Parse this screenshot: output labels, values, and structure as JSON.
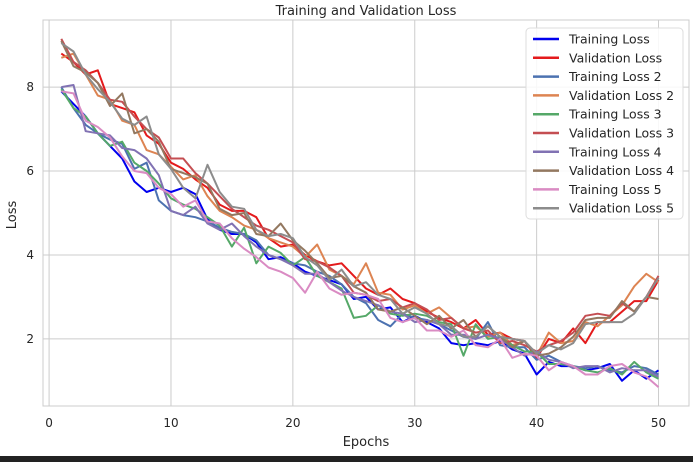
{
  "chart_data": {
    "type": "line",
    "title": "Training and Validation Loss",
    "xlabel": "Epochs",
    "ylabel": "Loss",
    "xlim": [
      -0.5,
      52.5
    ],
    "ylim": [
      0.4,
      9.6
    ],
    "xticks": [
      0,
      10,
      20,
      30,
      40,
      50
    ],
    "yticks": [
      2,
      4,
      6,
      8
    ],
    "grid": true,
    "legend_position": "top-right",
    "x": [
      1,
      2,
      3,
      4,
      5,
      6,
      7,
      8,
      9,
      10,
      11,
      12,
      13,
      14,
      15,
      16,
      17,
      18,
      19,
      20,
      21,
      22,
      23,
      24,
      25,
      26,
      27,
      28,
      29,
      30,
      31,
      32,
      33,
      34,
      35,
      36,
      37,
      38,
      39,
      40,
      41,
      42,
      43,
      44,
      45,
      46,
      47,
      48,
      49,
      50
    ],
    "series": [
      {
        "name": "Training Loss",
        "color": "#0000ee",
        "values": [
          7.9,
          7.6,
          7.3,
          6.9,
          6.6,
          6.3,
          5.75,
          5.5,
          5.6,
          5.5,
          5.6,
          5.45,
          4.85,
          4.6,
          4.5,
          4.5,
          4.3,
          3.9,
          3.95,
          3.8,
          3.6,
          3.5,
          3.4,
          3.3,
          2.95,
          3.0,
          2.7,
          2.75,
          2.4,
          2.55,
          2.4,
          2.25,
          1.9,
          1.85,
          1.9,
          1.85,
          1.95,
          1.75,
          1.65,
          1.15,
          1.45,
          1.35,
          1.35,
          1.25,
          1.3,
          1.4,
          1.0,
          1.25,
          1.05,
          1.25
        ]
      },
      {
        "name": "Validation Loss",
        "color": "#e41a1c",
        "values": [
          8.8,
          8.6,
          8.3,
          8.4,
          7.6,
          7.5,
          7.4,
          6.85,
          6.65,
          6.2,
          6.05,
          5.8,
          5.6,
          5.2,
          5.05,
          5.05,
          4.9,
          4.4,
          4.2,
          4.25,
          4.0,
          3.85,
          3.75,
          3.8,
          3.5,
          3.2,
          3.05,
          3.2,
          2.95,
          2.85,
          2.65,
          2.5,
          2.4,
          2.25,
          2.45,
          2.1,
          2.15,
          2.0,
          1.95,
          1.55,
          2.0,
          1.9,
          2.25,
          1.9,
          2.4,
          2.4,
          2.65,
          2.9,
          2.9,
          3.4
        ]
      },
      {
        "name": "Training Loss 2",
        "color": "#4c72b0",
        "values": [
          8.0,
          7.5,
          7.1,
          6.9,
          6.75,
          6.65,
          6.05,
          6.2,
          5.3,
          5.05,
          4.95,
          4.9,
          4.8,
          4.65,
          4.55,
          4.5,
          4.35,
          4.0,
          3.9,
          3.8,
          3.75,
          3.6,
          3.5,
          3.3,
          3.0,
          2.85,
          2.45,
          2.3,
          2.6,
          2.5,
          2.45,
          2.35,
          2.2,
          2.05,
          2.0,
          2.4,
          1.85,
          1.8,
          1.8,
          1.5,
          1.6,
          1.45,
          1.35,
          1.3,
          1.35,
          1.25,
          1.2,
          1.35,
          1.3,
          1.15
        ]
      },
      {
        "name": "Validation Loss 2",
        "color": "#dd8452",
        "values": [
          8.7,
          8.8,
          8.3,
          7.8,
          7.7,
          7.2,
          7.1,
          6.5,
          6.4,
          6.1,
          5.8,
          5.9,
          5.4,
          5.05,
          4.9,
          4.7,
          4.6,
          4.4,
          4.3,
          4.2,
          3.95,
          4.25,
          3.65,
          3.5,
          3.3,
          3.8,
          3.1,
          3.05,
          2.7,
          2.8,
          2.6,
          2.75,
          2.5,
          2.25,
          2.3,
          2.05,
          2.15,
          1.85,
          1.95,
          1.6,
          2.15,
          1.9,
          1.95,
          2.4,
          2.3,
          2.55,
          2.8,
          3.25,
          3.55,
          3.35
        ]
      },
      {
        "name": "Training Loss 3",
        "color": "#55a868",
        "values": [
          7.95,
          7.5,
          7.3,
          6.9,
          6.6,
          6.7,
          6.2,
          6.0,
          5.7,
          5.35,
          5.2,
          5.1,
          4.9,
          4.7,
          4.2,
          4.65,
          3.8,
          4.2,
          4.05,
          3.75,
          3.95,
          3.5,
          3.35,
          3.2,
          2.5,
          2.55,
          2.8,
          2.6,
          2.55,
          2.6,
          2.55,
          2.4,
          2.35,
          1.6,
          2.35,
          2.0,
          2.05,
          1.85,
          1.7,
          1.7,
          1.4,
          1.4,
          1.35,
          1.25,
          1.2,
          1.3,
          1.15,
          1.45,
          1.2,
          1.05
        ]
      },
      {
        "name": "Validation Loss 3",
        "color": "#c44e52",
        "values": [
          9.15,
          8.6,
          8.4,
          8.1,
          7.7,
          7.65,
          7.3,
          7.0,
          6.8,
          6.3,
          6.3,
          5.95,
          5.7,
          5.4,
          5.1,
          4.9,
          4.7,
          4.6,
          4.45,
          4.3,
          3.9,
          3.85,
          3.7,
          3.5,
          3.1,
          3.05,
          2.9,
          2.95,
          2.75,
          2.85,
          2.7,
          2.45,
          2.5,
          2.25,
          2.15,
          2.2,
          1.9,
          1.95,
          1.85,
          1.7,
          1.85,
          1.95,
          2.15,
          2.55,
          2.6,
          2.55,
          2.85,
          2.65,
          3.0,
          3.5
        ]
      },
      {
        "name": "Training Loss 4",
        "color": "#8172b3",
        "values": [
          8.0,
          8.05,
          6.95,
          6.9,
          6.85,
          6.55,
          6.5,
          6.3,
          5.9,
          5.05,
          4.95,
          5.15,
          4.75,
          4.6,
          4.75,
          4.45,
          4.2,
          4.0,
          3.9,
          3.75,
          3.55,
          3.55,
          3.35,
          3.15,
          3.0,
          2.9,
          2.8,
          2.65,
          2.6,
          2.4,
          2.45,
          2.35,
          2.1,
          2.1,
          2.0,
          2.1,
          2.0,
          1.8,
          1.6,
          1.7,
          1.5,
          1.45,
          1.3,
          1.35,
          1.35,
          1.2,
          1.3,
          1.25,
          1.25,
          1.1
        ]
      },
      {
        "name": "Validation Loss 4",
        "color": "#937860",
        "values": [
          9.1,
          8.5,
          8.35,
          8.1,
          7.55,
          7.85,
          6.9,
          7.0,
          6.7,
          6.05,
          5.95,
          5.85,
          5.7,
          5.1,
          4.95,
          5.0,
          4.5,
          4.45,
          4.75,
          4.35,
          4.1,
          3.8,
          3.45,
          3.5,
          3.25,
          3.1,
          2.7,
          2.65,
          2.75,
          2.55,
          2.35,
          2.55,
          2.25,
          2.45,
          2.05,
          2.3,
          2.05,
          1.8,
          1.95,
          1.6,
          1.65,
          1.8,
          2.05,
          2.45,
          2.5,
          2.5,
          2.9,
          2.65,
          3.0,
          2.95
        ]
      },
      {
        "name": "Training Loss 5",
        "color": "#da8bc3",
        "values": [
          7.9,
          7.85,
          7.2,
          7.05,
          6.8,
          6.35,
          6.0,
          5.95,
          5.6,
          5.45,
          5.15,
          5.3,
          4.8,
          4.75,
          4.4,
          4.15,
          3.95,
          3.7,
          3.6,
          3.45,
          3.1,
          3.6,
          3.2,
          3.05,
          3.1,
          3.05,
          2.95,
          2.5,
          2.4,
          2.5,
          2.2,
          2.2,
          2.05,
          2.2,
          1.85,
          1.8,
          2.0,
          1.55,
          1.65,
          1.6,
          1.25,
          1.45,
          1.35,
          1.15,
          1.15,
          1.35,
          1.4,
          1.2,
          1.1,
          0.85
        ]
      },
      {
        "name": "Validation Loss 5",
        "color": "#8c8c8c",
        "values": [
          9.05,
          8.85,
          8.3,
          7.95,
          7.65,
          7.25,
          7.1,
          7.3,
          6.4,
          6.05,
          5.6,
          5.35,
          6.15,
          5.5,
          5.15,
          5.1,
          4.6,
          4.45,
          4.5,
          4.4,
          3.95,
          3.75,
          3.4,
          3.65,
          3.25,
          3.35,
          3.05,
          2.95,
          2.6,
          2.75,
          2.6,
          2.35,
          2.3,
          2.05,
          2.05,
          2.3,
          2.05,
          2.0,
          1.95,
          1.65,
          1.85,
          1.75,
          1.9,
          2.35,
          2.4,
          2.4,
          2.4,
          2.6,
          3.0,
          3.45
        ]
      }
    ]
  }
}
